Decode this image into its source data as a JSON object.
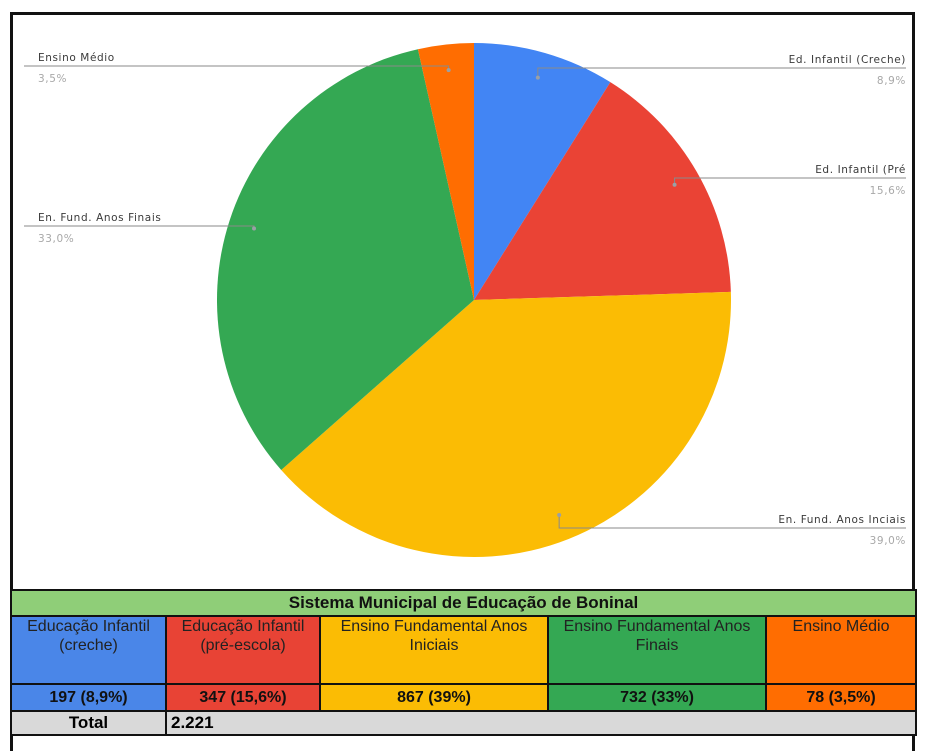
{
  "chart_data": {
    "type": "pie",
    "slices": [
      {
        "label": "Ed. Infantil (Creche)",
        "pct_label": "8,9%",
        "value": 8.9,
        "color": "#4285f4"
      },
      {
        "label": "Ed. Infantil (Pré",
        "pct_label": "15,6%",
        "value": 15.6,
        "color": "#ea4335"
      },
      {
        "label": "En. Fund. Anos Inciais",
        "pct_label": "39,0%",
        "value": 39.0,
        "color": "#fbbc04"
      },
      {
        "label": "En. Fund. Anos Finais",
        "pct_label": "33,0%",
        "value": 33.0,
        "color": "#34a853"
      },
      {
        "label": "Ensino Médio",
        "pct_label": "3,5%",
        "value": 3.5,
        "color": "#ff6d01"
      }
    ]
  },
  "table": {
    "title": "Sistema Municipal de Educação de Boninal",
    "columns": [
      {
        "header": "Educação Infantil (creche)",
        "value": "197 (8,9%)",
        "color": "#4a86e8"
      },
      {
        "header": "Educação Infantil (pré-escola)",
        "value": "347 (15,6%)",
        "color": "#e84335"
      },
      {
        "header": "Ensino Fundamental Anos Iniciais",
        "value": "867 (39%)",
        "color": "#fbbc04"
      },
      {
        "header": "Ensino Fundamental Anos Finais",
        "value": "732 (33%)",
        "color": "#34a853"
      },
      {
        "header": "Ensino Médio",
        "value": "78 (3,5%)",
        "color": "#ff6d01"
      }
    ],
    "total_label": "Total",
    "total_value": "2.221"
  }
}
